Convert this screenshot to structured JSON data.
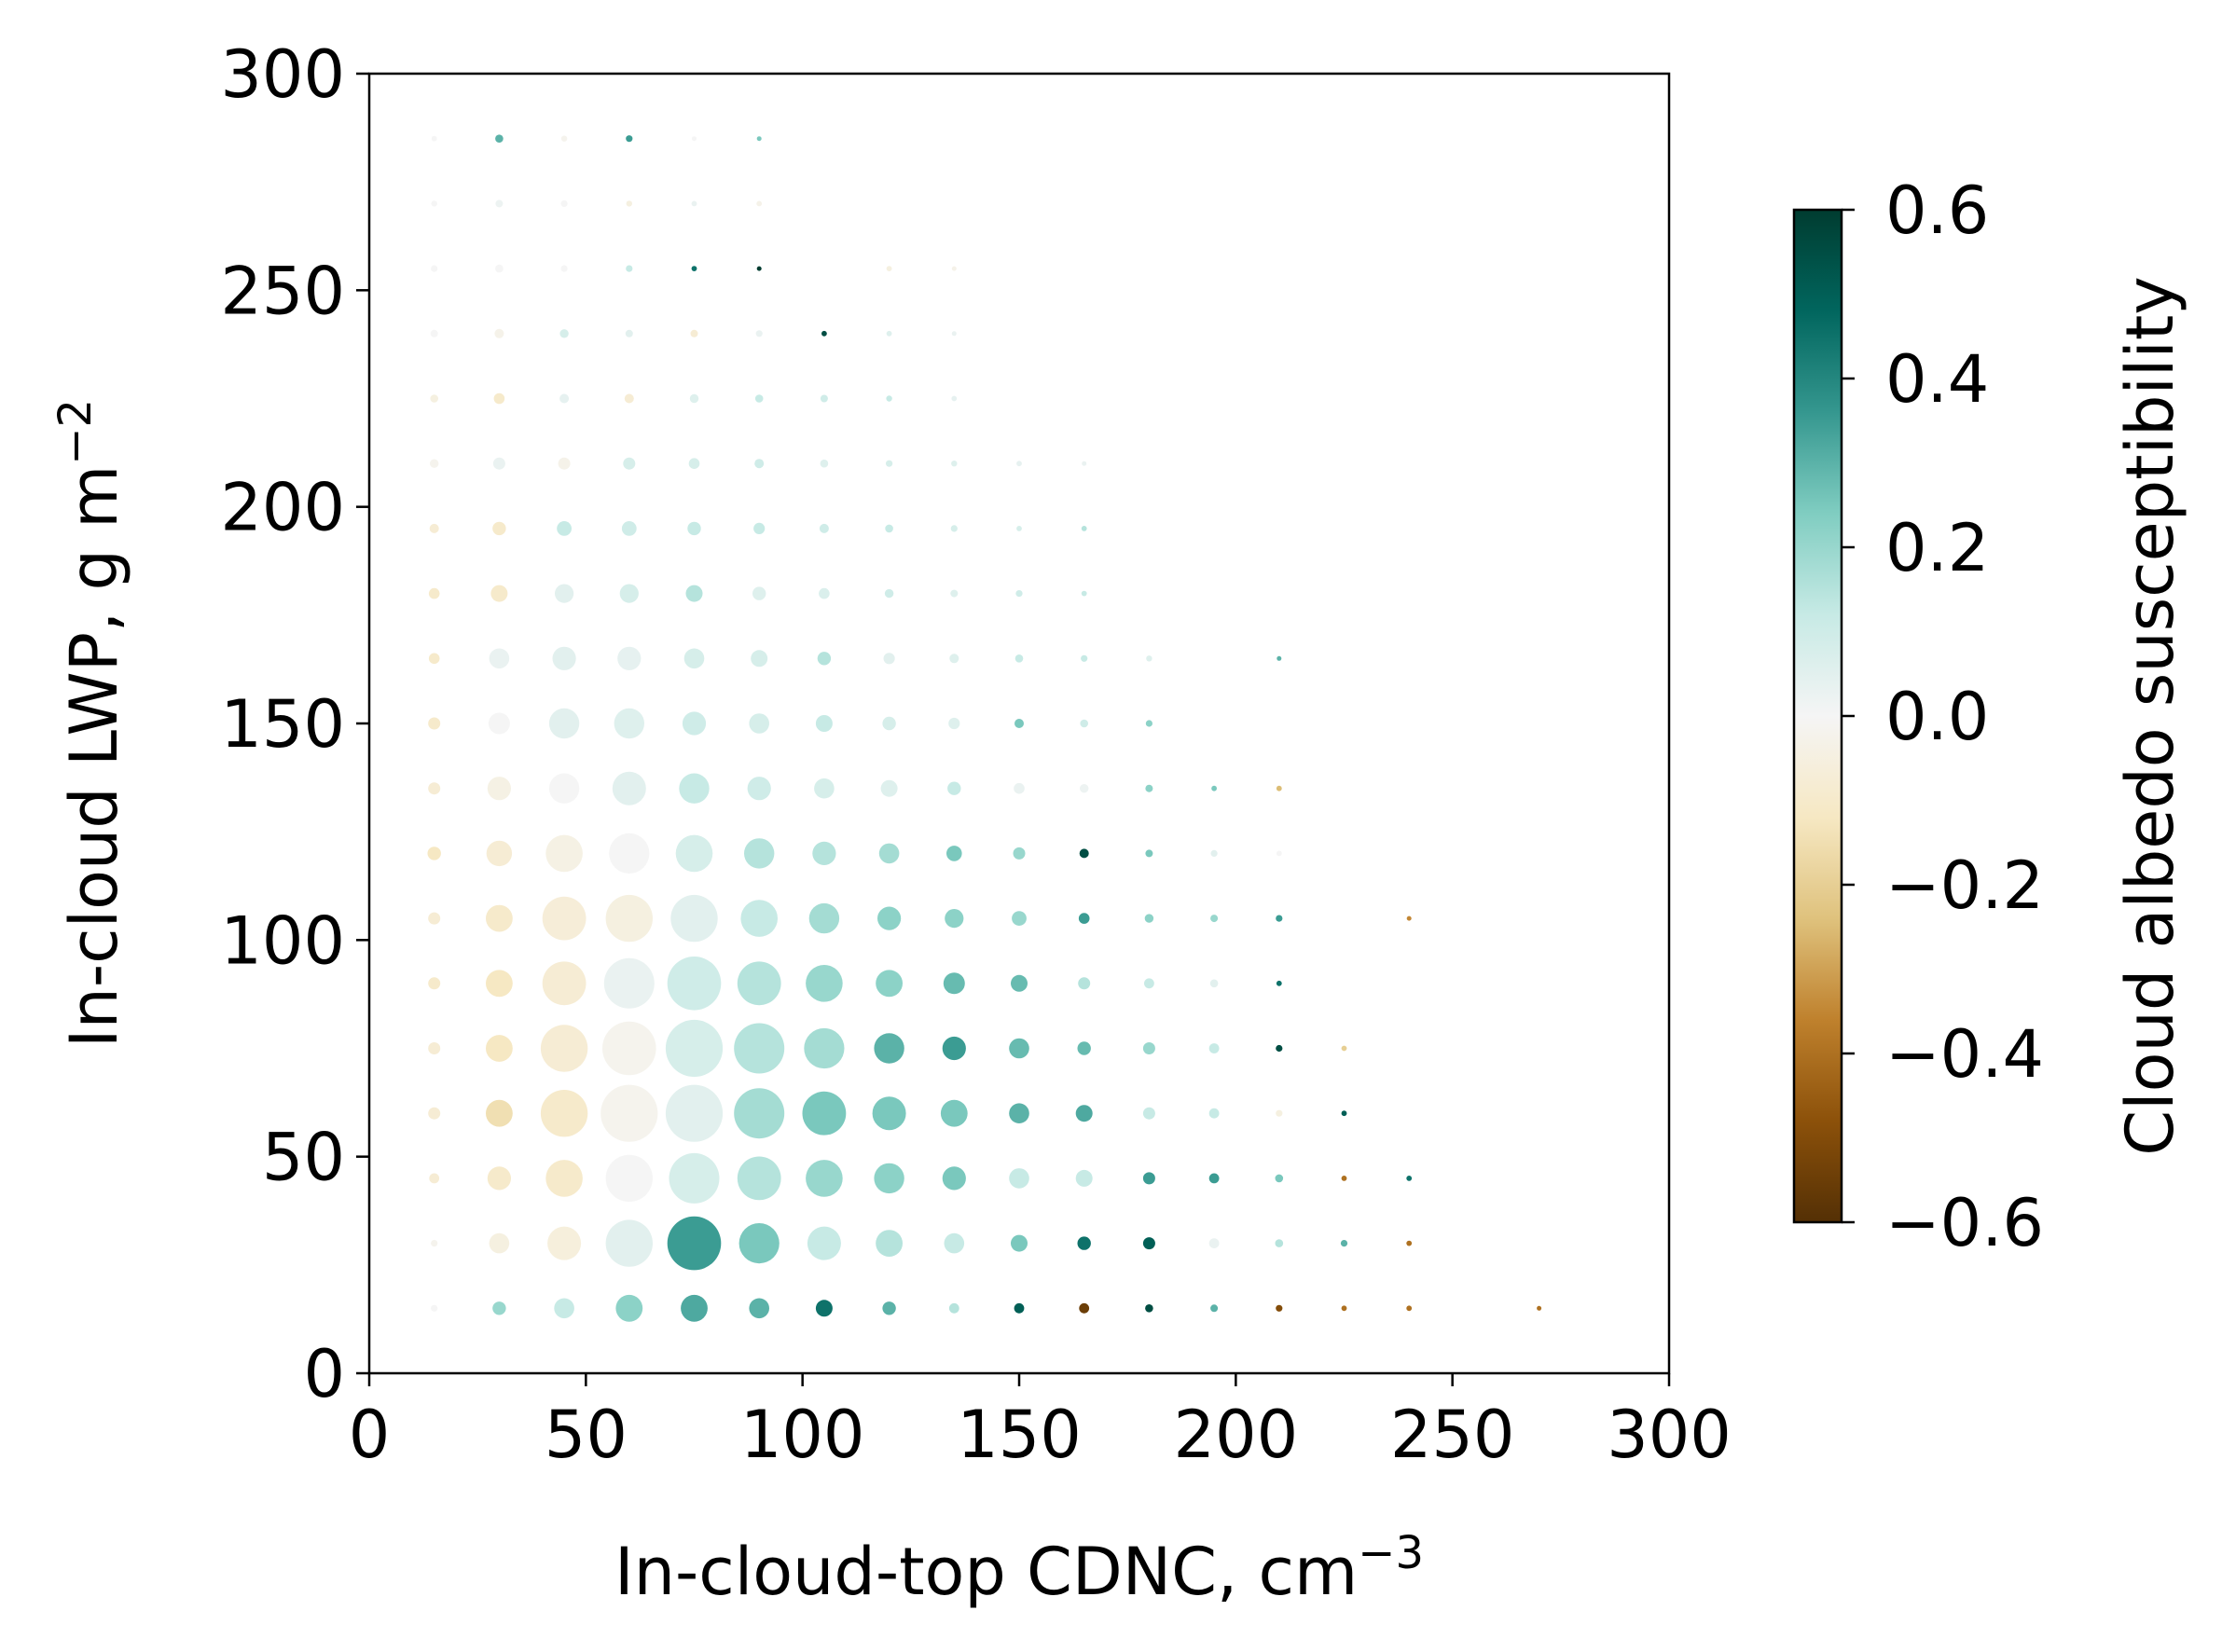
{
  "chart_data": {
    "type": "scatter",
    "title": "",
    "xlabel": "In-cloud-top CDNC, cm",
    "xlabel_sup": "−3",
    "ylabel": "In-cloud LWP, g m",
    "ylabel_sup": "−2",
    "xlim": [
      0,
      300
    ],
    "ylim": [
      0,
      300
    ],
    "xticks": [
      0,
      50,
      100,
      150,
      200,
      250,
      300
    ],
    "yticks": [
      0,
      50,
      100,
      150,
      200,
      250,
      300
    ],
    "grid": false,
    "colorbar": {
      "label": "Cloud albedo susceptibility",
      "min": -0.6,
      "max": 0.6,
      "ticks": [
        0.6,
        0.4,
        0.2,
        0.0,
        -0.2,
        -0.4,
        -0.6
      ],
      "tick_labels": [
        "0.6",
        "0.4",
        "0.2",
        "0.0",
        "−0.2",
        "−0.4",
        "−0.6"
      ],
      "colormap": "BrBG",
      "stops": [
        "#543005",
        "#8c510a",
        "#bf812d",
        "#dfc27d",
        "#f6e8c3",
        "#f5f5f5",
        "#c7eae5",
        "#80cdc1",
        "#35978f",
        "#01665e",
        "#003c30"
      ]
    },
    "point_format": "[CDNC, LWP, susceptibility, relative_size]",
    "points": [
      [
        15,
        15,
        0.0,
        1
      ],
      [
        30,
        15,
        0.2,
        2
      ],
      [
        45,
        15,
        0.12,
        3
      ],
      [
        60,
        15,
        0.22,
        4
      ],
      [
        75,
        15,
        0.32,
        4
      ],
      [
        90,
        15,
        0.3,
        3
      ],
      [
        105,
        15,
        0.45,
        2.5
      ],
      [
        120,
        15,
        0.3,
        2
      ],
      [
        135,
        15,
        0.15,
        1.5
      ],
      [
        150,
        15,
        0.5,
        1.5
      ],
      [
        165,
        15,
        -0.55,
        1.5
      ],
      [
        180,
        15,
        0.55,
        1.2
      ],
      [
        195,
        15,
        0.3,
        1.1
      ],
      [
        210,
        15,
        -0.5,
        1
      ],
      [
        225,
        15,
        -0.4,
        0.8
      ],
      [
        240,
        15,
        -0.4,
        0.8
      ],
      [
        270,
        15,
        -0.4,
        0.7
      ],
      [
        15,
        30,
        -0.02,
        1
      ],
      [
        30,
        30,
        -0.05,
        3
      ],
      [
        45,
        30,
        -0.06,
        5
      ],
      [
        60,
        30,
        0.05,
        7
      ],
      [
        75,
        30,
        0.35,
        8
      ],
      [
        90,
        30,
        0.25,
        6
      ],
      [
        105,
        30,
        0.12,
        5
      ],
      [
        120,
        30,
        0.15,
        4
      ],
      [
        135,
        30,
        0.12,
        3
      ],
      [
        150,
        30,
        0.25,
        2.5
      ],
      [
        165,
        30,
        0.45,
        2
      ],
      [
        180,
        30,
        0.5,
        1.8
      ],
      [
        195,
        30,
        0.03,
        1.5
      ],
      [
        210,
        30,
        0.15,
        1.2
      ],
      [
        225,
        30,
        0.3,
        1
      ],
      [
        240,
        30,
        -0.4,
        0.8
      ],
      [
        15,
        45,
        -0.08,
        1.5
      ],
      [
        30,
        45,
        -0.1,
        3.5
      ],
      [
        45,
        45,
        -0.1,
        5.5
      ],
      [
        60,
        45,
        0.0,
        7
      ],
      [
        75,
        45,
        0.08,
        7.5
      ],
      [
        90,
        45,
        0.15,
        6.5
      ],
      [
        105,
        45,
        0.2,
        5.5
      ],
      [
        120,
        45,
        0.22,
        4.5
      ],
      [
        135,
        45,
        0.25,
        3.5
      ],
      [
        150,
        45,
        0.12,
        3
      ],
      [
        165,
        45,
        0.12,
        2.5
      ],
      [
        180,
        45,
        0.35,
        1.8
      ],
      [
        195,
        45,
        0.35,
        1.5
      ],
      [
        210,
        45,
        0.25,
        1.2
      ],
      [
        225,
        45,
        -0.4,
        0.8
      ],
      [
        240,
        45,
        0.45,
        0.8
      ],
      [
        15,
        60,
        -0.08,
        1.8
      ],
      [
        30,
        60,
        -0.15,
        4
      ],
      [
        45,
        60,
        -0.1,
        7
      ],
      [
        60,
        60,
        -0.02,
        8.5
      ],
      [
        75,
        60,
        0.05,
        8.5
      ],
      [
        90,
        60,
        0.18,
        7.5
      ],
      [
        105,
        60,
        0.25,
        6.5
      ],
      [
        120,
        60,
        0.25,
        5
      ],
      [
        135,
        60,
        0.25,
        4
      ],
      [
        150,
        60,
        0.3,
        3
      ],
      [
        165,
        60,
        0.32,
        2.5
      ],
      [
        180,
        60,
        0.12,
        1.8
      ],
      [
        195,
        60,
        0.12,
        1.5
      ],
      [
        210,
        60,
        -0.05,
        1
      ],
      [
        225,
        60,
        0.5,
        0.8
      ],
      [
        15,
        75,
        -0.08,
        1.8
      ],
      [
        30,
        75,
        -0.12,
        4
      ],
      [
        45,
        75,
        -0.08,
        7
      ],
      [
        60,
        75,
        -0.02,
        8
      ],
      [
        75,
        75,
        0.08,
        8.5
      ],
      [
        90,
        75,
        0.15,
        7.5
      ],
      [
        105,
        75,
        0.18,
        6
      ],
      [
        120,
        75,
        0.3,
        4.5
      ],
      [
        135,
        75,
        0.35,
        3.5
      ],
      [
        150,
        75,
        0.28,
        3
      ],
      [
        165,
        75,
        0.28,
        2
      ],
      [
        180,
        75,
        0.2,
        1.8
      ],
      [
        195,
        75,
        0.12,
        1.5
      ],
      [
        210,
        75,
        0.55,
        1
      ],
      [
        225,
        75,
        -0.2,
        0.8
      ],
      [
        15,
        90,
        -0.1,
        1.8
      ],
      [
        30,
        90,
        -0.12,
        4
      ],
      [
        45,
        90,
        -0.08,
        6.5
      ],
      [
        60,
        90,
        0.03,
        7.5
      ],
      [
        75,
        90,
        0.1,
        8
      ],
      [
        90,
        90,
        0.15,
        6.5
      ],
      [
        105,
        90,
        0.2,
        5.5
      ],
      [
        120,
        90,
        0.22,
        4
      ],
      [
        135,
        90,
        0.28,
        3.2
      ],
      [
        150,
        90,
        0.28,
        2.5
      ],
      [
        165,
        90,
        0.15,
        1.8
      ],
      [
        180,
        90,
        0.12,
        1.5
      ],
      [
        195,
        90,
        0.05,
        1.2
      ],
      [
        210,
        90,
        0.45,
        0.8
      ],
      [
        15,
        105,
        -0.08,
        1.8
      ],
      [
        30,
        105,
        -0.1,
        4
      ],
      [
        45,
        105,
        -0.07,
        6.5
      ],
      [
        60,
        105,
        -0.05,
        7
      ],
      [
        75,
        105,
        0.05,
        7
      ],
      [
        90,
        105,
        0.12,
        5.5
      ],
      [
        105,
        105,
        0.18,
        4.5
      ],
      [
        120,
        105,
        0.22,
        3.5
      ],
      [
        135,
        105,
        0.22,
        2.8
      ],
      [
        150,
        105,
        0.2,
        2.2
      ],
      [
        165,
        105,
        0.35,
        1.6
      ],
      [
        180,
        105,
        0.22,
        1.3
      ],
      [
        195,
        105,
        0.2,
        1.1
      ],
      [
        210,
        105,
        0.35,
        1
      ],
      [
        240,
        105,
        -0.35,
        0.7
      ],
      [
        15,
        120,
        -0.12,
        2
      ],
      [
        30,
        120,
        -0.08,
        3.8
      ],
      [
        45,
        120,
        -0.04,
        5.5
      ],
      [
        60,
        120,
        0.0,
        6
      ],
      [
        75,
        120,
        0.08,
        5.5
      ],
      [
        90,
        120,
        0.15,
        4.5
      ],
      [
        105,
        120,
        0.15,
        3.5
      ],
      [
        120,
        120,
        0.18,
        3
      ],
      [
        135,
        120,
        0.25,
        2.3
      ],
      [
        150,
        120,
        0.2,
        1.8
      ],
      [
        165,
        120,
        0.55,
        1.4
      ],
      [
        180,
        120,
        0.25,
        1.1
      ],
      [
        195,
        120,
        0.05,
        1
      ],
      [
        210,
        120,
        0.0,
        0.8
      ],
      [
        15,
        135,
        -0.08,
        1.8
      ],
      [
        30,
        135,
        -0.04,
        3.5
      ],
      [
        45,
        135,
        0.0,
        4.5
      ],
      [
        60,
        135,
        0.05,
        5
      ],
      [
        75,
        135,
        0.12,
        4.5
      ],
      [
        90,
        135,
        0.1,
        3.5
      ],
      [
        105,
        135,
        0.08,
        3
      ],
      [
        120,
        135,
        0.06,
        2.5
      ],
      [
        135,
        135,
        0.12,
        2
      ],
      [
        150,
        135,
        0.03,
        1.6
      ],
      [
        165,
        135,
        0.02,
        1.3
      ],
      [
        180,
        135,
        0.22,
        1.1
      ],
      [
        195,
        135,
        0.25,
        0.8
      ],
      [
        210,
        135,
        -0.25,
        0.8
      ],
      [
        15,
        150,
        -0.1,
        1.8
      ],
      [
        30,
        150,
        0.0,
        3.2
      ],
      [
        45,
        150,
        0.05,
        4.5
      ],
      [
        60,
        150,
        0.06,
        4.5
      ],
      [
        75,
        150,
        0.1,
        3.5
      ],
      [
        90,
        150,
        0.08,
        3
      ],
      [
        105,
        150,
        0.12,
        2.5
      ],
      [
        120,
        150,
        0.08,
        2
      ],
      [
        135,
        150,
        0.06,
        1.7
      ],
      [
        150,
        150,
        0.25,
        1.4
      ],
      [
        165,
        150,
        0.1,
        1.2
      ],
      [
        180,
        150,
        0.22,
        1
      ],
      [
        15,
        165,
        -0.1,
        1.6
      ],
      [
        30,
        165,
        0.03,
        3
      ],
      [
        45,
        165,
        0.05,
        3.5
      ],
      [
        60,
        165,
        0.04,
        3.5
      ],
      [
        75,
        165,
        0.08,
        3
      ],
      [
        90,
        165,
        0.08,
        2.5
      ],
      [
        105,
        165,
        0.15,
        2
      ],
      [
        120,
        165,
        0.05,
        1.7
      ],
      [
        135,
        165,
        0.06,
        1.4
      ],
      [
        150,
        165,
        0.12,
        1.2
      ],
      [
        165,
        165,
        0.12,
        1
      ],
      [
        180,
        165,
        0.06,
        0.9
      ],
      [
        210,
        165,
        0.3,
        0.7
      ],
      [
        15,
        180,
        -0.1,
        1.6
      ],
      [
        30,
        180,
        -0.1,
        2.5
      ],
      [
        45,
        180,
        0.05,
        2.8
      ],
      [
        60,
        180,
        0.08,
        2.8
      ],
      [
        75,
        180,
        0.15,
        2.5
      ],
      [
        90,
        180,
        0.06,
        2
      ],
      [
        105,
        180,
        0.07,
        1.6
      ],
      [
        120,
        180,
        0.1,
        1.3
      ],
      [
        135,
        180,
        0.06,
        1.1
      ],
      [
        150,
        180,
        0.1,
        1
      ],
      [
        165,
        180,
        0.12,
        0.8
      ],
      [
        15,
        195,
        -0.08,
        1.4
      ],
      [
        30,
        195,
        -0.1,
        2
      ],
      [
        45,
        195,
        0.12,
        2.2
      ],
      [
        60,
        195,
        0.1,
        2.2
      ],
      [
        75,
        195,
        0.12,
        2
      ],
      [
        90,
        195,
        0.12,
        1.7
      ],
      [
        105,
        195,
        0.1,
        1.4
      ],
      [
        120,
        195,
        0.12,
        1.2
      ],
      [
        135,
        195,
        0.08,
        1
      ],
      [
        150,
        195,
        0.08,
        0.8
      ],
      [
        165,
        195,
        0.15,
        0.8
      ],
      [
        15,
        210,
        -0.02,
        1.3
      ],
      [
        30,
        210,
        0.03,
        1.8
      ],
      [
        45,
        210,
        -0.03,
        1.8
      ],
      [
        60,
        210,
        0.08,
        1.8
      ],
      [
        75,
        210,
        0.08,
        1.6
      ],
      [
        90,
        210,
        0.1,
        1.4
      ],
      [
        105,
        210,
        0.06,
        1.2
      ],
      [
        120,
        210,
        0.08,
        1
      ],
      [
        135,
        210,
        0.06,
        0.9
      ],
      [
        150,
        210,
        0.04,
        0.8
      ],
      [
        165,
        210,
        0.03,
        0.7
      ],
      [
        15,
        225,
        -0.05,
        1.2
      ],
      [
        30,
        225,
        -0.1,
        1.6
      ],
      [
        45,
        225,
        0.04,
        1.4
      ],
      [
        60,
        225,
        -0.08,
        1.4
      ],
      [
        75,
        225,
        0.06,
        1.3
      ],
      [
        90,
        225,
        0.12,
        1.2
      ],
      [
        105,
        225,
        0.1,
        1.1
      ],
      [
        120,
        225,
        0.12,
        0.9
      ],
      [
        135,
        225,
        0.04,
        0.8
      ],
      [
        15,
        240,
        0.0,
        1.1
      ],
      [
        30,
        240,
        -0.03,
        1.4
      ],
      [
        45,
        240,
        0.08,
        1.3
      ],
      [
        60,
        240,
        0.05,
        1.1
      ],
      [
        75,
        240,
        -0.08,
        1.1
      ],
      [
        90,
        240,
        0.03,
        1
      ],
      [
        105,
        240,
        0.55,
        0.8
      ],
      [
        120,
        240,
        0.06,
        0.8
      ],
      [
        135,
        240,
        0.03,
        0.7
      ],
      [
        15,
        255,
        0.0,
        1
      ],
      [
        30,
        255,
        0.0,
        1.2
      ],
      [
        45,
        255,
        0.0,
        1
      ],
      [
        60,
        255,
        0.12,
        1
      ],
      [
        75,
        255,
        0.45,
        0.8
      ],
      [
        90,
        255,
        0.6,
        0.7
      ],
      [
        120,
        255,
        -0.05,
        0.8
      ],
      [
        135,
        255,
        -0.03,
        0.7
      ],
      [
        15,
        270,
        0.0,
        0.9
      ],
      [
        30,
        270,
        0.02,
        1.1
      ],
      [
        45,
        270,
        0.0,
        1
      ],
      [
        60,
        270,
        -0.05,
        0.9
      ],
      [
        75,
        270,
        0.03,
        0.8
      ],
      [
        90,
        270,
        -0.03,
        0.8
      ],
      [
        15,
        285,
        0.0,
        0.8
      ],
      [
        30,
        285,
        0.3,
        1.2
      ],
      [
        45,
        285,
        -0.02,
        0.9
      ],
      [
        60,
        285,
        0.35,
        1
      ],
      [
        75,
        285,
        0.0,
        0.7
      ],
      [
        90,
        285,
        0.25,
        0.7
      ]
    ]
  }
}
